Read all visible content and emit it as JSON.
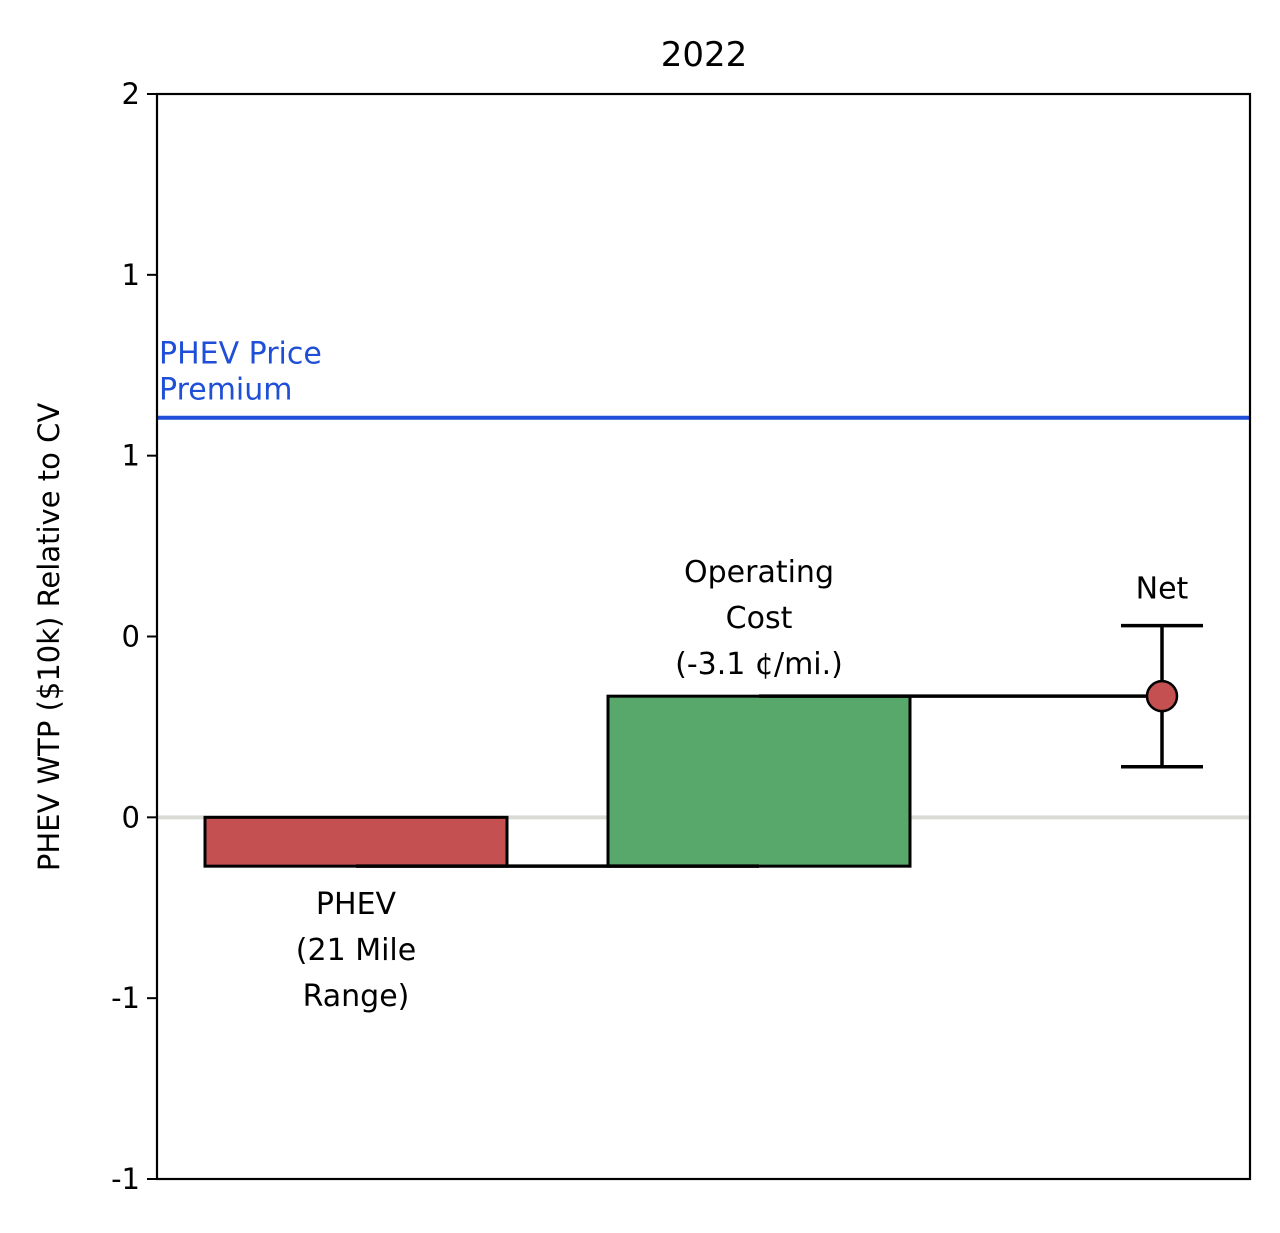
{
  "chart_data": {
    "type": "waterfall",
    "title": "2022",
    "xlabel": "",
    "ylabel": "PHEV WTP ($10k) Relative to CV",
    "ylim": [
      -1.0,
      2.0
    ],
    "yticks": [
      {
        "value": 2.0,
        "label": "2"
      },
      {
        "value": 1.5,
        "label": "1"
      },
      {
        "value": 1.0,
        "label": "1"
      },
      {
        "value": 0.5,
        "label": "0"
      },
      {
        "value": 0.0,
        "label": "0"
      },
      {
        "value": -0.5,
        "label": "-1"
      },
      {
        "value": -1.0,
        "label": "-1"
      }
    ],
    "grid": false,
    "zero_line": {
      "value": 0.0,
      "color": "#d9dbd4"
    },
    "steps": [
      {
        "label": "PHEV\n(21 Mile\nRange)",
        "start": 0.0,
        "end": -0.135,
        "color": "#c45052",
        "label_position": "below"
      },
      {
        "label": "Operating\nCost\n(-3.1 ¢/mi.)",
        "start": -0.135,
        "end": 0.335,
        "color": "#57a86a",
        "label_position": "above"
      }
    ],
    "net": {
      "label": "Net",
      "value": 0.335,
      "ci_low": 0.14,
      "ci_high": 0.53,
      "color": "#c45052"
    },
    "reference_line": {
      "label": "PHEV Price\nPremium",
      "value": 1.105,
      "color": "#1f4fd6"
    }
  }
}
